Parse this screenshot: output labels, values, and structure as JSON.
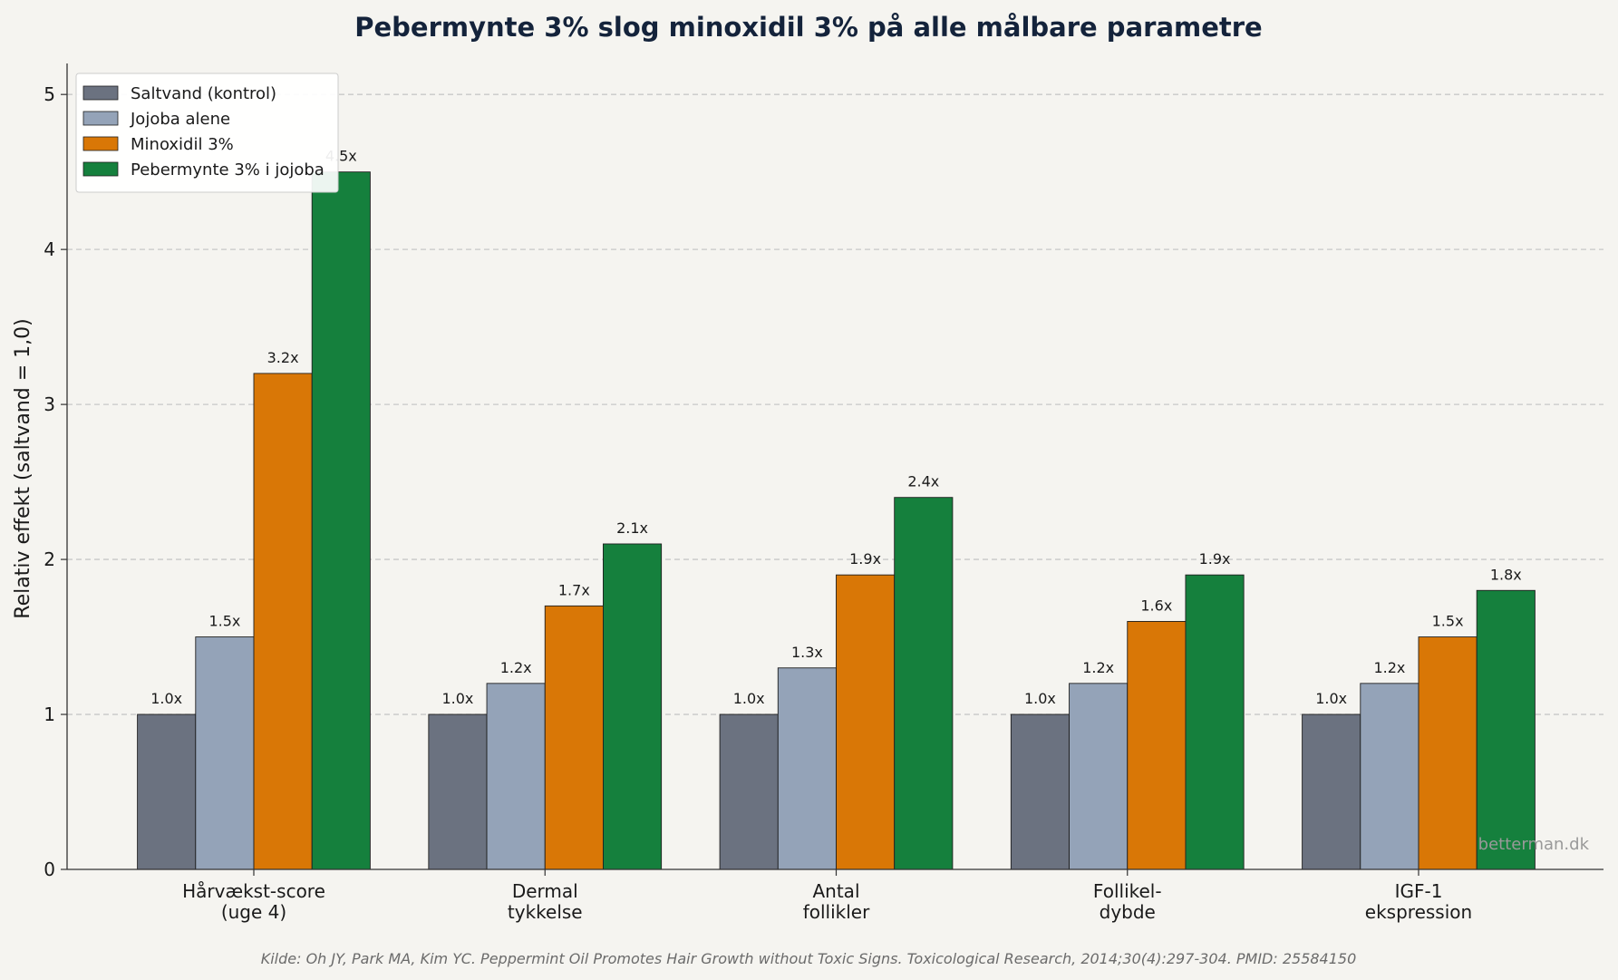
{
  "chart_data": {
    "type": "bar",
    "title": "Pebermynte 3% slog minoxidil 3% på alle målbare parametre",
    "ylabel": "Relativ effekt (saltvand = 1,0)",
    "xlabel": "",
    "ylim": [
      0,
      5.2
    ],
    "yticks": [
      "0",
      "1",
      "2",
      "3",
      "4",
      "5"
    ],
    "grid": "y-dashed",
    "legend_position": "top-left",
    "categories": [
      [
        "Hårvækst-score",
        "(uge 4)"
      ],
      [
        "Dermal",
        "tykkelse"
      ],
      [
        "Antal",
        "follikler"
      ],
      [
        "Follikel-",
        "dybde"
      ],
      [
        "IGF-1",
        "ekspression"
      ]
    ],
    "series": [
      {
        "name": "Saltvand (kontrol)",
        "color": "#6b7280",
        "values": [
          1.0,
          1.0,
          1.0,
          1.0,
          1.0
        ],
        "labels": [
          "1.0x",
          "1.0x",
          "1.0x",
          "1.0x",
          "1.0x"
        ]
      },
      {
        "name": "Jojoba alene",
        "color": "#94a3b8",
        "values": [
          1.5,
          1.2,
          1.3,
          1.2,
          1.2
        ],
        "labels": [
          "1.5x",
          "1.2x",
          "1.3x",
          "1.2x",
          "1.2x"
        ]
      },
      {
        "name": "Minoxidil 3%",
        "color": "#d97706",
        "values": [
          3.2,
          1.7,
          1.9,
          1.6,
          1.5
        ],
        "labels": [
          "3.2x",
          "1.7x",
          "1.9x",
          "1.6x",
          "1.5x"
        ]
      },
      {
        "name": "Pebermynte 3% i jojoba",
        "color": "#15803d",
        "values": [
          4.5,
          2.1,
          2.4,
          1.9,
          1.8
        ],
        "labels": [
          "4.5x",
          "2.1x",
          "2.4x",
          "1.9x",
          "1.8x"
        ]
      }
    ],
    "watermark": "betterman.dk",
    "source": "Kilde: Oh JY, Park MA, Kim YC. Peppermint Oil Promotes Hair Growth without Toxic Signs. Toxicological Research, 2014;30(4):297-304. PMID: 25584150"
  }
}
